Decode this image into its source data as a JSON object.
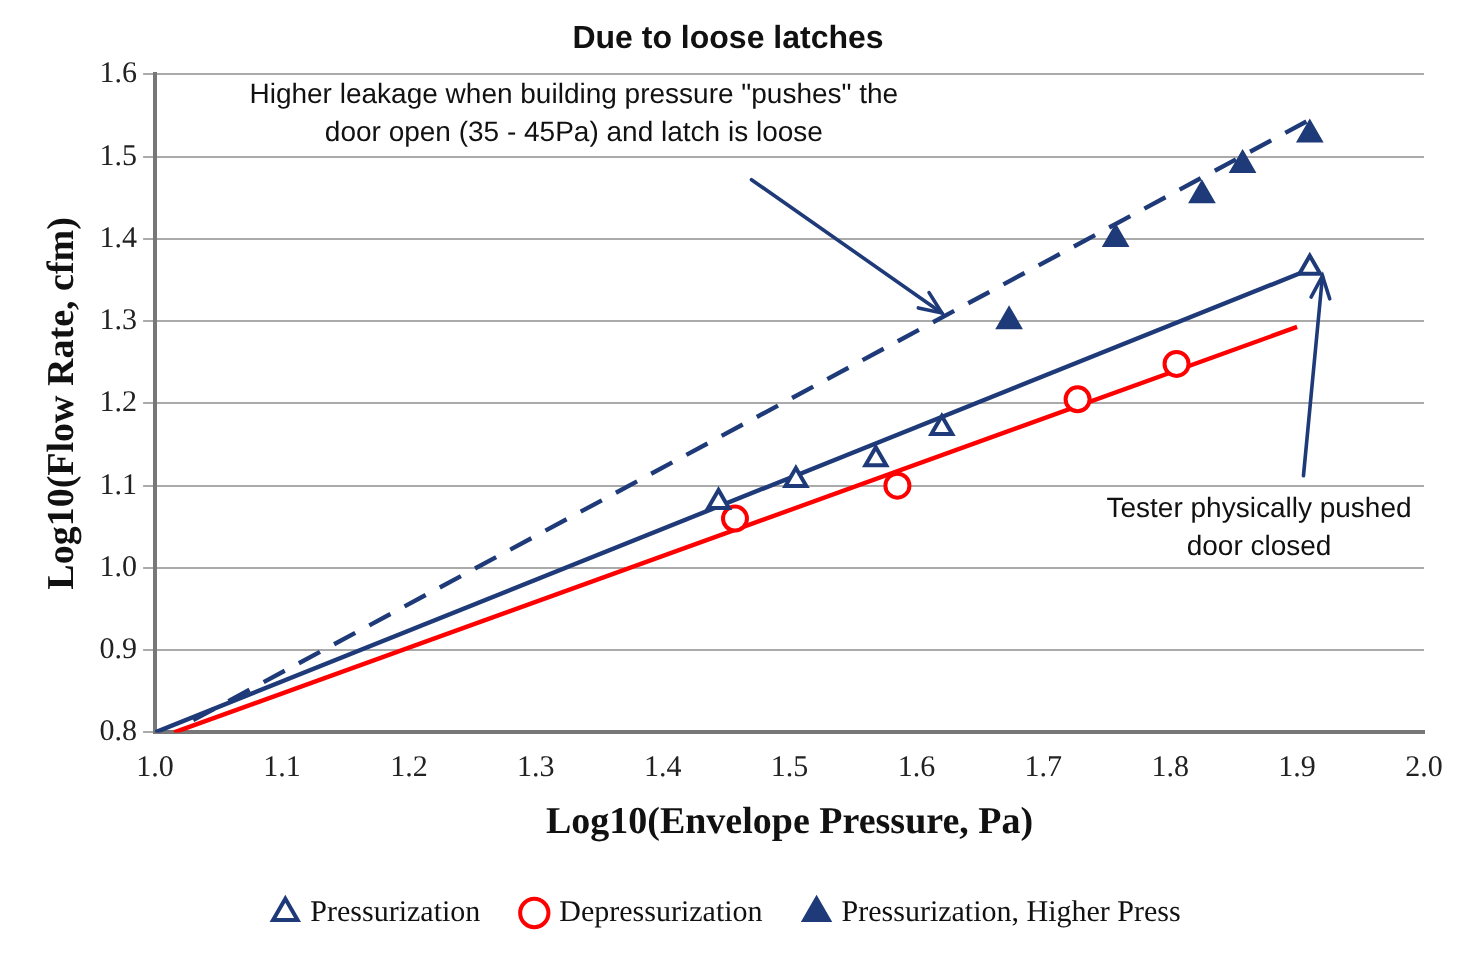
{
  "chart_data": {
    "type": "scatter",
    "title": "Due to loose latches",
    "xlabel": "Log10(Envelope Pressure, Pa)",
    "ylabel": "Log10(Flow Rate, cfm)",
    "xlim": [
      1.0,
      2.0
    ],
    "xticks": [
      {
        "value": 1.0,
        "label": "1.0"
      },
      1.1,
      1.2,
      1.3,
      1.4,
      1.5,
      1.6,
      1.7,
      1.8,
      1.9,
      {
        "value": 2.0,
        "label": "2.0"
      }
    ],
    "ylim": [
      0.8,
      1.6
    ],
    "yticks": [
      0.8,
      0.9,
      {
        "value": 1.0,
        "label": "1.0"
      },
      1.1,
      1.2,
      1.3,
      1.4,
      1.5,
      1.6
    ],
    "grid": "y",
    "legend": "bottom",
    "series": [
      {
        "name": "Pressurization",
        "type": "scatter",
        "marker": "triangle",
        "color": "#1f3a78",
        "x": [
          1.444,
          1.505,
          1.568,
          1.62,
          1.91
        ],
        "values": [
          1.08,
          1.107,
          1.132,
          1.17,
          1.365
        ]
      },
      {
        "name": "Depressurization",
        "type": "scatter",
        "marker": "circle",
        "color": "#ff0000",
        "x": [
          1.457,
          1.585,
          1.727,
          1.805
        ],
        "values": [
          1.06,
          1.1,
          1.205,
          1.248
        ]
      },
      {
        "name": "Pressurization, Higher Press",
        "type": "scatter",
        "marker": "triangle",
        "color": "#1f3a78",
        "x": [
          1.673,
          1.757,
          1.825,
          1.857,
          1.91
        ],
        "values": [
          1.3,
          1.4,
          1.453,
          1.49,
          1.527
        ]
      },
      {
        "type": "line",
        "line_style": "solid",
        "color": "#1f3a78",
        "x": [
          1.0,
          1.91
        ],
        "values": [
          0.8,
          1.363
        ]
      },
      {
        "type": "line",
        "line_style": "solid",
        "color": "#ff0000",
        "x": [
          1.015,
          1.9
        ],
        "values": [
          0.8,
          1.293
        ]
      },
      {
        "type": "line",
        "line_style": "dashed",
        "color": "#1f3a78",
        "x": [
          1.03,
          1.91
        ],
        "values": [
          0.815,
          1.545
        ]
      }
    ],
    "annotations": [
      {
        "text": "Higher leakage when building pressure \"pushes\" the\ndoor open (35 - 45Pa) and latch is loose",
        "x": 1.62,
        "y": 1.31
      },
      {
        "text": "Tester physically pushed\ndoor closed",
        "x": 1.92,
        "y": 1.355
      }
    ]
  }
}
